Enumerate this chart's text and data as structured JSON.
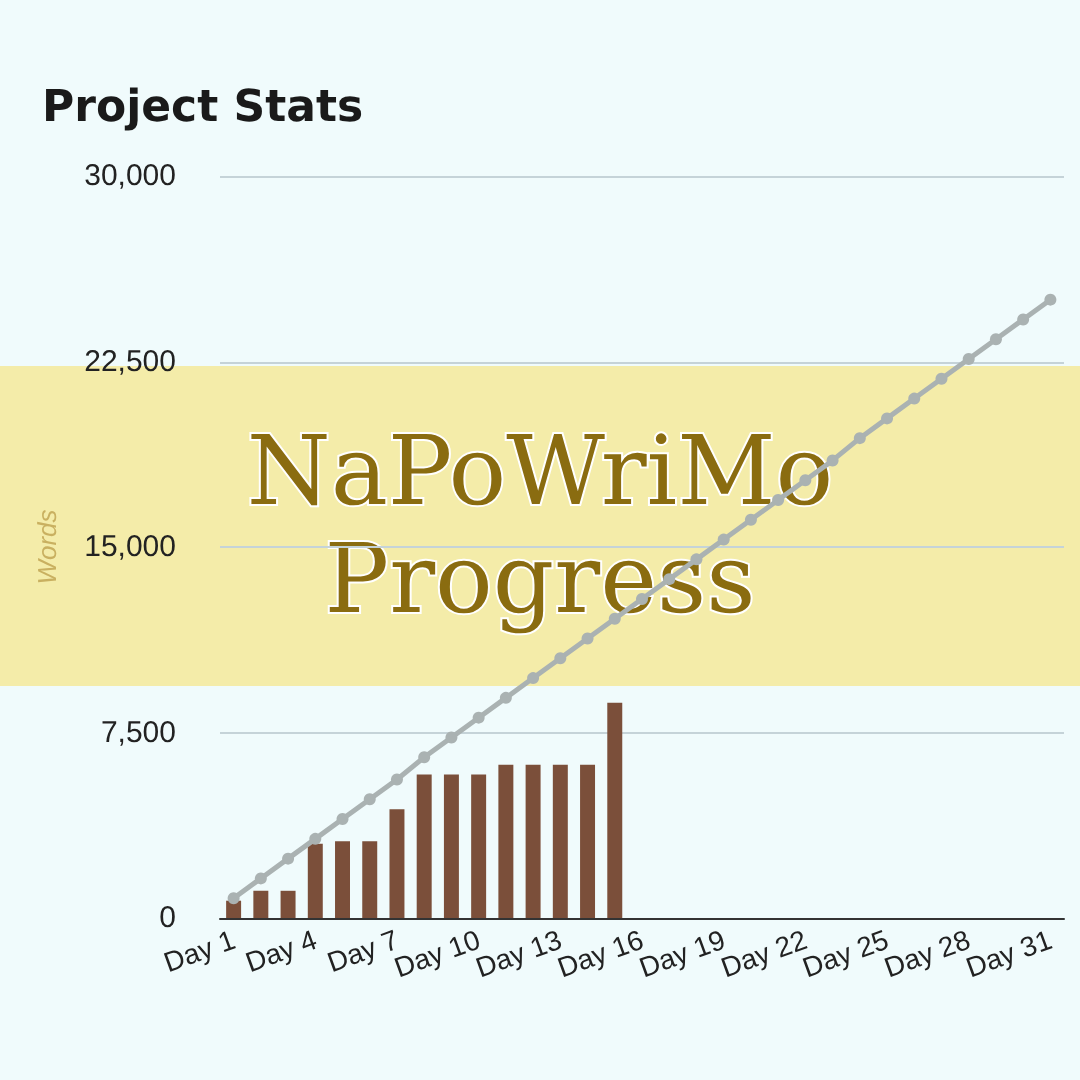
{
  "chart_data": {
    "type": "bar",
    "title": "Project Stats",
    "ylabel": "Words",
    "annotations": [
      "NaPoWriMo Progress"
    ],
    "categories": [
      "Day 1",
      null,
      null,
      "Day 4",
      null,
      null,
      "Day 7",
      null,
      null,
      "Day 10",
      null,
      null,
      "Day 13",
      null,
      null,
      "Day 16",
      null,
      null,
      "Day 19",
      null,
      null,
      "Day 22",
      null,
      null,
      "Day 25",
      null,
      null,
      "Day 28",
      null,
      null,
      "Day 31"
    ],
    "series": [
      {
        "type": "bar",
        "color": "#7b4f3a",
        "values": [
          700,
          1100,
          1100,
          3000,
          3100,
          3100,
          4400,
          5800,
          5800,
          5800,
          6200,
          6200,
          6200,
          6200,
          8700,
          null,
          null,
          null,
          null,
          null,
          null,
          null,
          null,
          null,
          null,
          null,
          null,
          null,
          null,
          null,
          null
        ]
      },
      {
        "type": "line",
        "color": "#aab2b2",
        "marker": "circle",
        "values": [
          800,
          1600,
          2400,
          3200,
          4000,
          4800,
          5600,
          6500,
          7300,
          8100,
          8900,
          9700,
          10500,
          11300,
          12100,
          12900,
          13700,
          14500,
          15300,
          16100,
          16900,
          17700,
          18500,
          19400,
          20200,
          21000,
          21800,
          22600,
          23400,
          24200,
          25000
        ]
      }
    ],
    "ylim": [
      0,
      30000
    ],
    "yticks": [
      0,
      {
        "value": 7500,
        "label": "7,500"
      },
      {
        "value": 15000,
        "label": "15,000"
      },
      {
        "value": 22500,
        "label": "22,500"
      },
      {
        "value": 30000,
        "label": "30,000"
      }
    ],
    "grid": "y"
  }
}
